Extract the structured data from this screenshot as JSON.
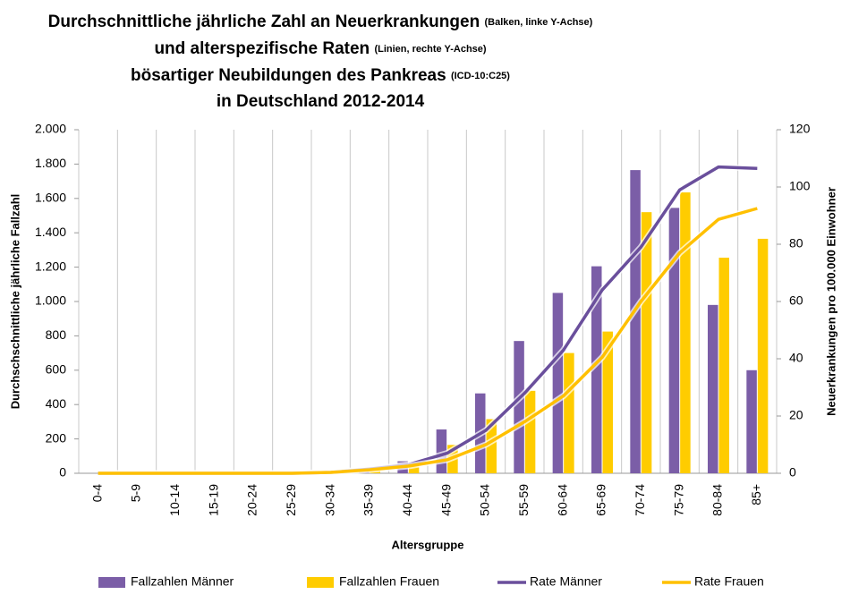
{
  "chart_data": {
    "type": "bar",
    "title_lines": [
      {
        "main": "Durchschnittliche jährliche Zahl an Neuerkrankungen",
        "note": "(Balken, linke Y-Achse)"
      },
      {
        "main": "und alterspezifische Raten",
        "note": "(Linien, rechte Y-Achse)"
      },
      {
        "main": "bösartiger Neubildungen des Pankreas",
        "note": "(ICD-10:C25)"
      },
      {
        "main": "in Deutschland 2012-2014"
      }
    ],
    "x_label": "Altersgruppe",
    "y_label": "Durchschschnittliche jährliche Fallzahl",
    "y2_label": "Neuerkrankungen pro 100.000 Einwohner",
    "categories": [
      "0-4",
      "5-9",
      "10-14",
      "15-19",
      "20-24",
      "25-29",
      "30-34",
      "35-39",
      "40-44",
      "45-49",
      "50-54",
      "55-59",
      "60-64",
      "65-69",
      "70-74",
      "75-79",
      "80-84",
      "85+"
    ],
    "series": [
      {
        "name": "Fallzahlen Männer",
        "type": "bar",
        "color": "#7b5ea7",
        "values": [
          0,
          0,
          1,
          1,
          2,
          4,
          10,
          25,
          70,
          255,
          465,
          770,
          1050,
          1205,
          1765,
          1545,
          980,
          600
        ]
      },
      {
        "name": "Fallzahlen Frauen",
        "type": "bar",
        "color": "#ffcc00",
        "values": [
          0,
          0,
          1,
          1,
          2,
          4,
          8,
          20,
          40,
          165,
          315,
          480,
          700,
          825,
          1520,
          1635,
          1255,
          1365
        ]
      },
      {
        "name": "Rate Männer",
        "type": "line",
        "axis": "y2",
        "color": "#6a4f9c",
        "values": [
          0,
          0,
          0,
          0,
          0,
          0,
          0.3,
          1.5,
          3,
          7,
          15,
          28,
          43,
          64,
          79,
          99,
          107,
          106.5
        ]
      },
      {
        "name": "Rate Frauen",
        "type": "line",
        "axis": "y2",
        "color": "#ffc000",
        "values": [
          0,
          0,
          0,
          0,
          0,
          0,
          0.3,
          1.2,
          2.5,
          4.7,
          10,
          18,
          27,
          40.5,
          60,
          77,
          88.7,
          92.5
        ]
      }
    ],
    "ylim": [
      0,
      2000
    ],
    "yticks": [
      0,
      200,
      400,
      600,
      800,
      {
        "value": 1000,
        "label": "1.000"
      },
      {
        "value": 1200,
        "label": "1.200"
      },
      {
        "value": 1400,
        "label": "1.400"
      },
      {
        "value": 1600,
        "label": "1.600"
      },
      {
        "value": 1800,
        "label": "1.800"
      },
      {
        "value": 2000,
        "label": "2.000"
      }
    ],
    "y2lim": [
      0,
      120
    ],
    "y2ticks": [
      0,
      20,
      40,
      60,
      80,
      100,
      120
    ],
    "grid": "x",
    "legend": "bottom"
  }
}
